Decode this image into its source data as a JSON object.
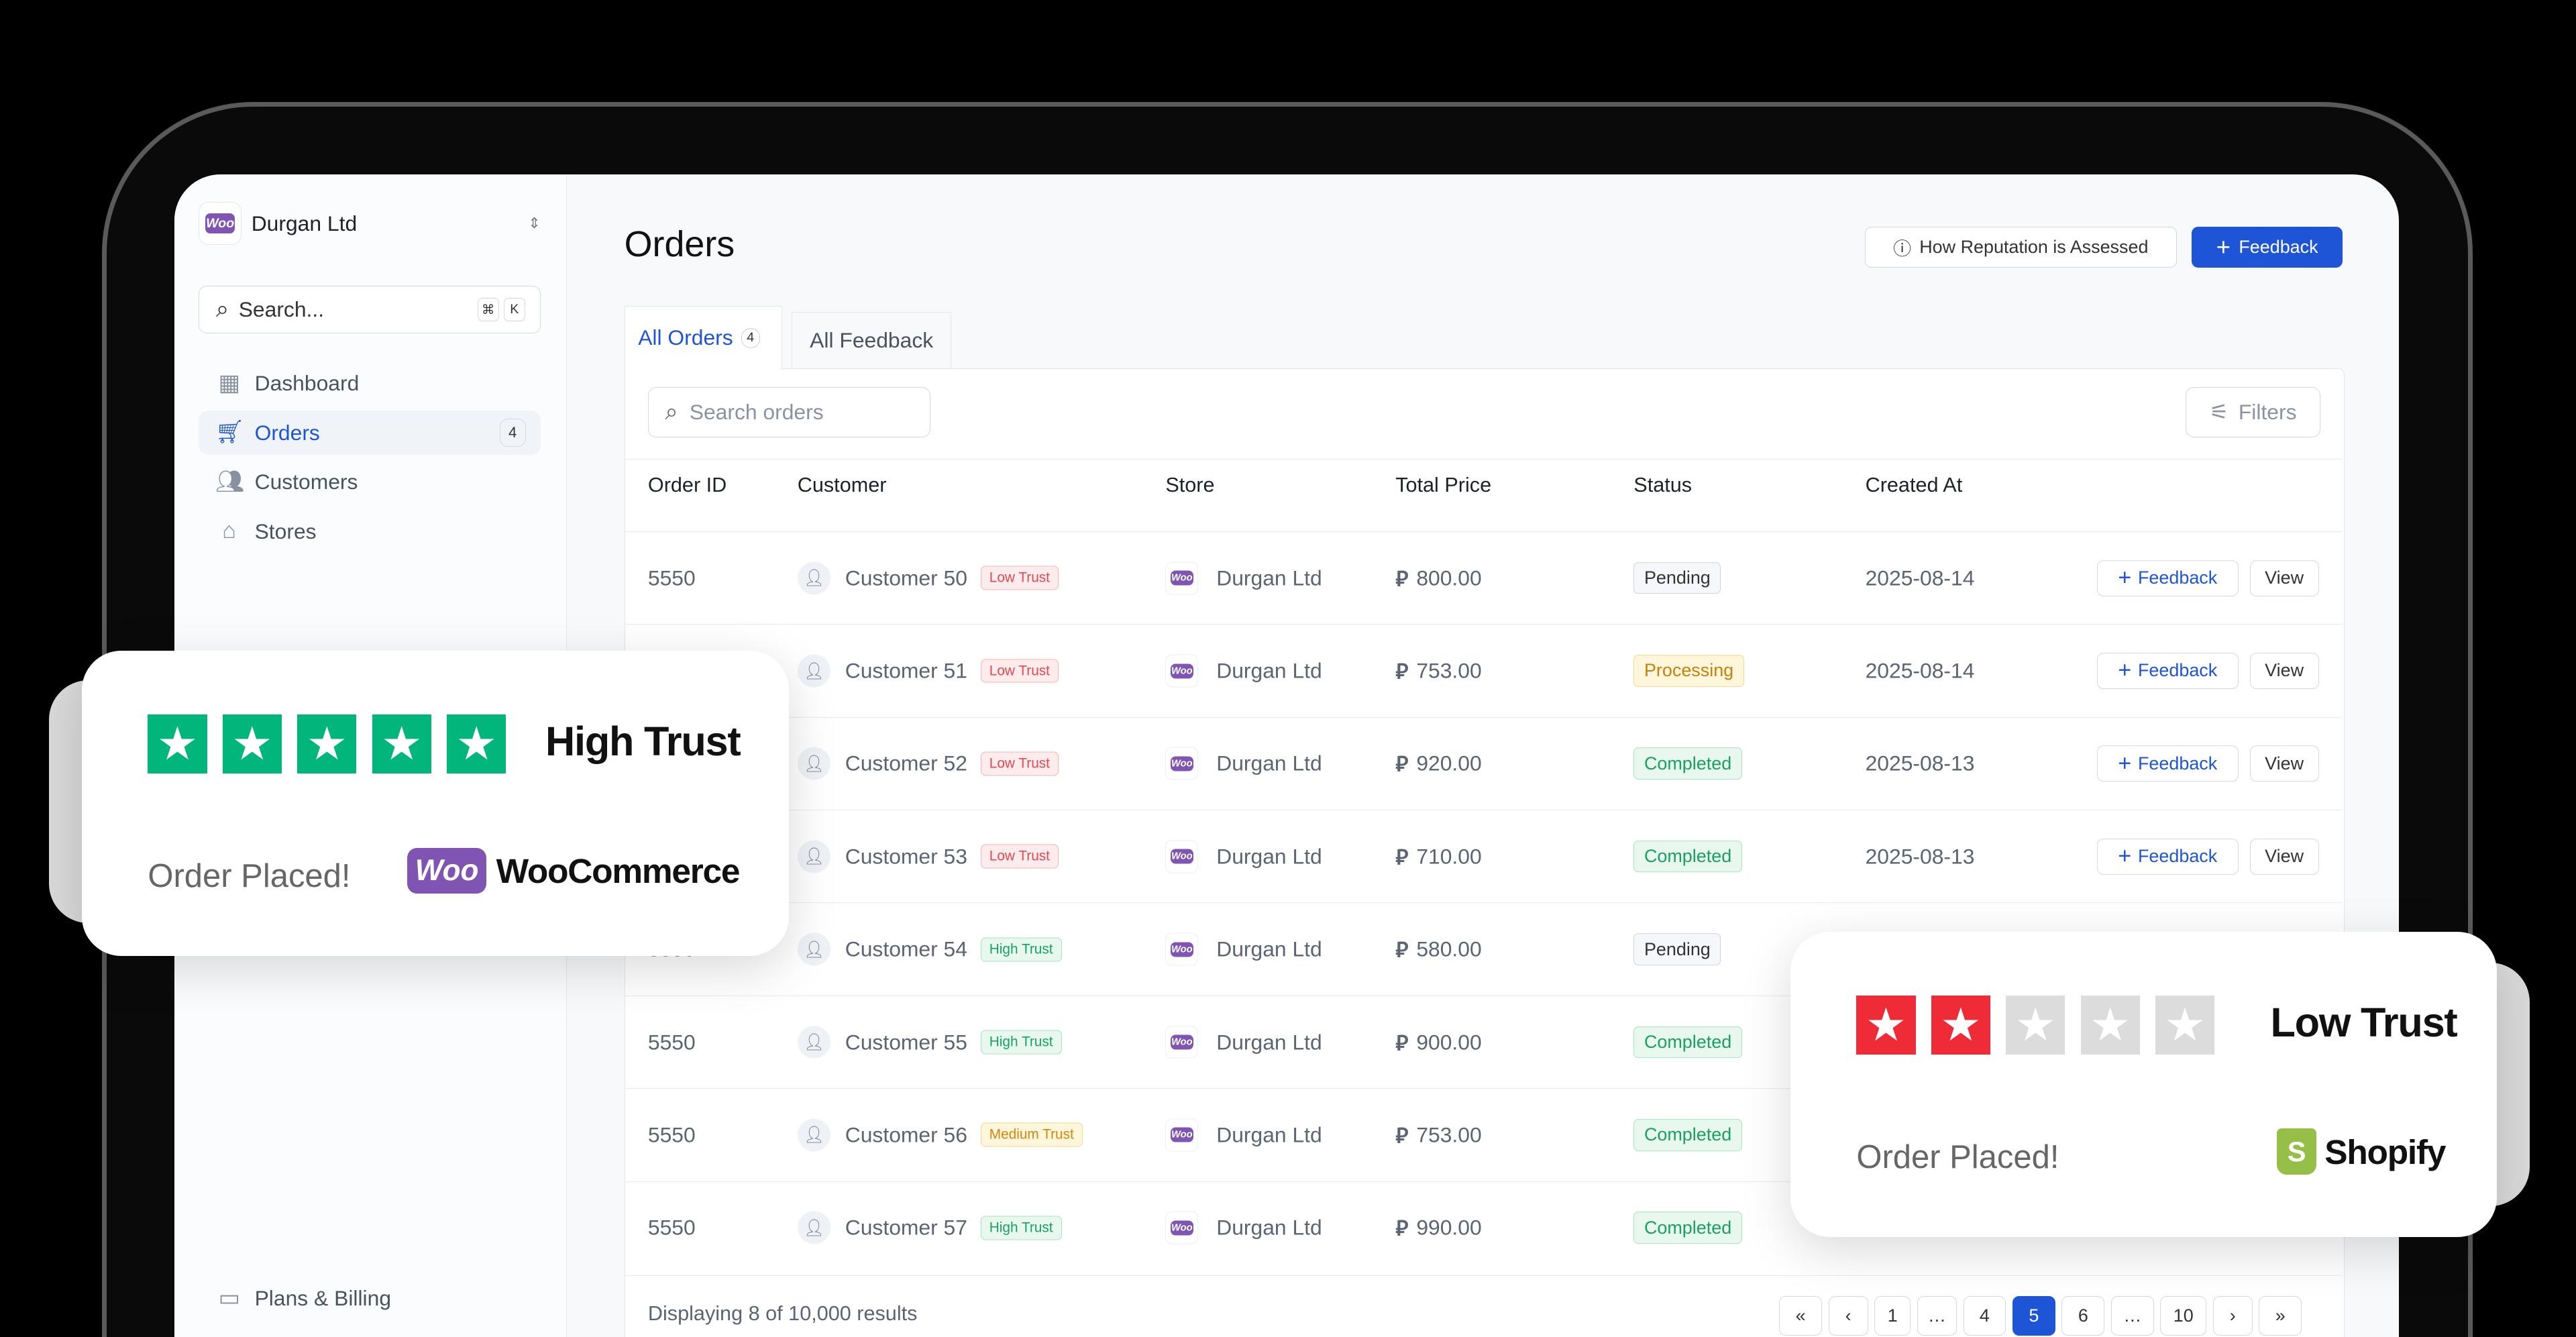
{
  "workspace": {
    "name": "Durgan Ltd",
    "logo_text": "Woo"
  },
  "sidebar": {
    "search_placeholder": "Search...",
    "shortcut": [
      "⌘",
      "K"
    ],
    "items": [
      {
        "label": "Dashboard",
        "icon": "grid-icon"
      },
      {
        "label": "Orders",
        "icon": "cart-icon",
        "badge": "4",
        "active": true
      },
      {
        "label": "Customers",
        "icon": "users-icon"
      },
      {
        "label": "Stores",
        "icon": "store-icon"
      }
    ],
    "footer_item": {
      "label": "Plans & Billing",
      "icon": "credit-card-icon"
    }
  },
  "header": {
    "title": "Orders",
    "reputation_button": "How Reputation is Assessed",
    "feedback_button": "Feedback"
  },
  "tabs": [
    {
      "label": "All Orders",
      "count": "4",
      "active": true
    },
    {
      "label": "All Feedback"
    }
  ],
  "table": {
    "search_placeholder": "Search orders",
    "filters_label": "Filters",
    "columns": [
      "Order ID",
      "Customer",
      "Store",
      "Total Price",
      "Status",
      "Created At"
    ],
    "rows": [
      {
        "id": "5550",
        "customer": "Customer 50",
        "trust": "Low Trust",
        "store": "Durgan Ltd",
        "price": "800.00",
        "status": "Pending",
        "created": "2025-08-14",
        "feedback": "Feedback",
        "view": "View"
      },
      {
        "id": "5550",
        "customer": "Customer 51",
        "trust": "Low Trust",
        "store": "Durgan Ltd",
        "price": "753.00",
        "status": "Processing",
        "created": "2025-08-14",
        "feedback": "Feedback",
        "view": "View"
      },
      {
        "id": "5550",
        "customer": "Customer 52",
        "trust": "Low Trust",
        "store": "Durgan Ltd",
        "price": "920.00",
        "status": "Completed",
        "created": "2025-08-13",
        "feedback": "Feedback",
        "view": "View"
      },
      {
        "id": "5550",
        "customer": "Customer 53",
        "trust": "Low Trust",
        "store": "Durgan Ltd",
        "price": "710.00",
        "status": "Completed",
        "created": "2025-08-13",
        "feedback": "Feedback",
        "view": "View"
      },
      {
        "id": "5550",
        "customer": "Customer 54",
        "trust": "High Trust",
        "store": "Durgan Ltd",
        "price": "580.00",
        "status": "Pending",
        "created": "",
        "feedback": "",
        "view": ""
      },
      {
        "id": "5550",
        "customer": "Customer 55",
        "trust": "High Trust",
        "store": "Durgan Ltd",
        "price": "900.00",
        "status": "Completed",
        "created": "",
        "feedback": "",
        "view": ""
      },
      {
        "id": "5550",
        "customer": "Customer 56",
        "trust": "Medium Trust",
        "store": "Durgan Ltd",
        "price": "753.00",
        "status": "Completed",
        "created": "",
        "feedback": "",
        "view": ""
      },
      {
        "id": "5550",
        "customer": "Customer 57",
        "trust": "High Trust",
        "store": "Durgan Ltd",
        "price": "990.00",
        "status": "Completed",
        "created": "",
        "feedback": "",
        "view": ""
      }
    ],
    "currency_symbol": "⃁",
    "footer": "Displaying 8 of 10,000 results",
    "pagination": [
      "«",
      "‹",
      "1",
      "…",
      "4",
      "5",
      "6",
      "…",
      "10",
      "›",
      "»"
    ],
    "current_page": "5"
  },
  "cards": {
    "high": {
      "label": "High Trust",
      "rating": 5,
      "message": "Order Placed!",
      "platform": "WooCommerce",
      "platform_logo": "Woo",
      "star_color": "#00b67a"
    },
    "low": {
      "label": "Low Trust",
      "rating": 2,
      "message": "Order Placed!",
      "platform": "Shopify",
      "star_color": "#ee2b36",
      "empty_color": "#dcdcdc"
    }
  },
  "colors": {
    "accent": "#1d55d6",
    "low": "#e5484d",
    "high": "#16a365",
    "medium": "#d4860b"
  }
}
